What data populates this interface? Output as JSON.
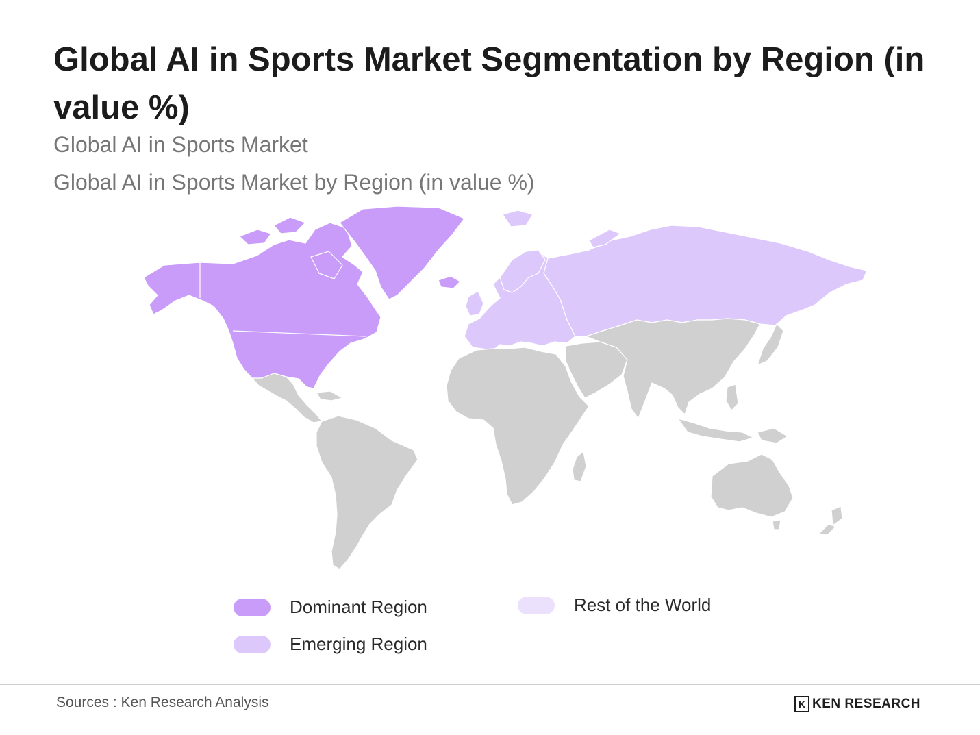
{
  "header": {
    "title": "Global AI in Sports Market Segmentation by Region (in value %)",
    "subtitle_1": "Global AI in Sports Market",
    "subtitle_2": "Global AI in Sports Market by Region (in value %)"
  },
  "map": {
    "regions": [
      {
        "name": "North America & Greenland",
        "category": "dominant"
      },
      {
        "name": "Europe & Russia",
        "category": "emerging"
      },
      {
        "name": "Latin America, Africa, Middle East, Asia-Pacific, Oceania",
        "category": "rest"
      }
    ],
    "colors": {
      "dominant": "#c99cf9",
      "emerging": "#dcc8fb",
      "rest_map_fill": "#d0d0d0",
      "rest_legend": "#ece1fd",
      "borders": "#ffffff"
    }
  },
  "legend": {
    "dominant_label": "Dominant Region",
    "emerging_label": "Emerging Region",
    "rest_label": "Rest of the World"
  },
  "footer": {
    "sources": "Sources : Ken Research Analysis",
    "brand_glyph": "K",
    "brand": "KEN RESEARCH"
  }
}
